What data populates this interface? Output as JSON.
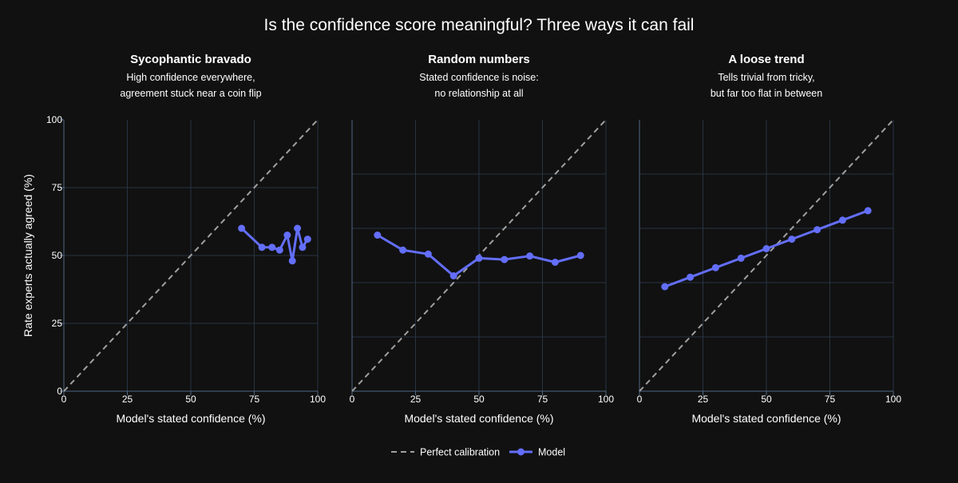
{
  "title": "Is the confidence score meaningful? Three ways it can fail",
  "colors": {
    "background": "#111111",
    "grid": "#283442",
    "axis": "#506784",
    "model_line": "#636EFA",
    "calibration_line": "#A0A0A0",
    "text": "#ffffff"
  },
  "legend": {
    "calibration_label": "Perfect calibration",
    "model_label": "Model"
  },
  "chart_data": [
    {
      "type": "line",
      "title": "Sycophantic bravado",
      "subtitle_lines": [
        "High confidence everywhere,",
        "agreement stuck near a coin flip"
      ],
      "xlabel": "Model's stated confidence (%)",
      "ylabel": "Rate experts actually agreed (%)",
      "xlim": [
        0,
        100
      ],
      "ylim": [
        0,
        100
      ],
      "x_ticks": [
        0,
        25,
        50,
        75,
        100
      ],
      "y_ticks": [
        0,
        25,
        50,
        75,
        100
      ],
      "y_tick_labels_visible": true,
      "grid": true,
      "series": [
        {
          "name": "Perfect calibration",
          "style": "dashed",
          "x": [
            0,
            100
          ],
          "y": [
            0,
            100
          ]
        },
        {
          "name": "Model",
          "style": "lines+markers",
          "x": [
            70,
            78,
            82,
            85,
            88,
            90,
            92,
            94,
            96
          ],
          "y": [
            60,
            53,
            53,
            52,
            57.5,
            48,
            60,
            53,
            56
          ]
        }
      ]
    },
    {
      "type": "line",
      "title": "Random numbers",
      "subtitle_lines": [
        "Stated confidence is noise:",
        "no relationship at all"
      ],
      "xlabel": "Model's stated confidence (%)",
      "ylabel": "",
      "xlim": [
        0,
        100
      ],
      "ylim": [
        0,
        100
      ],
      "x_ticks": [
        0,
        25,
        50,
        75,
        100
      ],
      "y_ticks": [
        0,
        20,
        40,
        60,
        80,
        100
      ],
      "y_tick_labels_visible": false,
      "grid": true,
      "series": [
        {
          "name": "Perfect calibration",
          "style": "dashed",
          "x": [
            0,
            100
          ],
          "y": [
            0,
            100
          ]
        },
        {
          "name": "Model",
          "style": "lines+markers",
          "x": [
            10,
            20,
            30,
            40,
            50,
            60,
            70,
            80,
            90
          ],
          "y": [
            57.5,
            52,
            50.5,
            42.5,
            49,
            48.5,
            49.8,
            47.5,
            50
          ]
        }
      ]
    },
    {
      "type": "line",
      "title": "A loose trend",
      "subtitle_lines": [
        "Tells trivial from tricky,",
        "but far too flat in between"
      ],
      "xlabel": "Model's stated confidence (%)",
      "ylabel": "",
      "xlim": [
        0,
        100
      ],
      "ylim": [
        0,
        100
      ],
      "x_ticks": [
        0,
        25,
        50,
        75,
        100
      ],
      "y_ticks": [
        0,
        20,
        40,
        60,
        80,
        100
      ],
      "y_tick_labels_visible": false,
      "grid": true,
      "series": [
        {
          "name": "Perfect calibration",
          "style": "dashed",
          "x": [
            0,
            100
          ],
          "y": [
            0,
            100
          ]
        },
        {
          "name": "Model",
          "style": "lines+markers",
          "x": [
            10,
            20,
            30,
            40,
            50,
            60,
            70,
            80,
            90
          ],
          "y": [
            38.5,
            42,
            45.5,
            49,
            52.5,
            56,
            59.5,
            63,
            66.5
          ]
        }
      ]
    }
  ]
}
